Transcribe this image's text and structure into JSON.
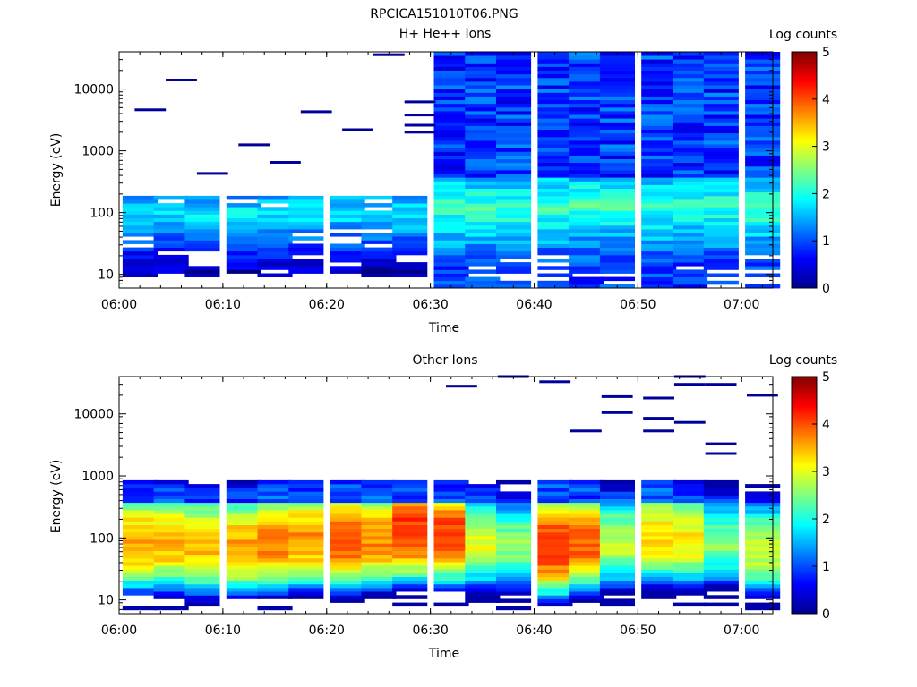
{
  "figure_title": "RPCICA151010T06.PNG",
  "chart_data": [
    {
      "type": "heatmap",
      "title": "H+ He++ Ions",
      "xlabel": "Time",
      "ylabel": "Energy (eV)",
      "xlim": [
        "06:00",
        "07:03"
      ],
      "x_ticks": [
        "06:00",
        "06:10",
        "06:20",
        "06:30",
        "06:40",
        "06:50",
        "07:00"
      ],
      "y_scale": "log",
      "ylim": [
        6,
        40000
      ],
      "y_ticks": [
        "10",
        "100",
        "1000",
        "10000"
      ],
      "colorbar": {
        "label": "Log counts",
        "range": [
          0,
          5
        ],
        "ticks": [
          "0",
          "1",
          "2",
          "3",
          "4",
          "5"
        ],
        "colormap": "jet"
      },
      "time_bins": [
        "06:02",
        "06:05",
        "06:08",
        "06:12",
        "06:15",
        "06:18",
        "06:22",
        "06:25",
        "06:28",
        "06:32",
        "06:35",
        "06:38",
        "06:42",
        "06:45",
        "06:48",
        "06:52",
        "06:55",
        "06:58",
        "07:02"
      ],
      "mode_change_time": "06:31",
      "sparse_high_energy_hits": [
        {
          "t": "06:03",
          "e": 4600
        },
        {
          "t": "06:06",
          "e": 14000
        },
        {
          "t": "06:09",
          "e": 430
        },
        {
          "t": "06:13",
          "e": 1250
        },
        {
          "t": "06:16",
          "e": 650
        },
        {
          "t": "06:19",
          "e": 4300
        },
        {
          "t": "06:23",
          "e": 2200
        },
        {
          "t": "06:26",
          "e": 36000
        },
        {
          "t": "06:29",
          "e": 6200
        },
        {
          "t": "06:29",
          "e": 3800
        },
        {
          "t": "06:29",
          "e": 2600
        },
        {
          "t": "06:29",
          "e": 2000
        }
      ],
      "note": "Low-energy core 10–180 eV before 06:31 (log counts ~0.5–2); after 06:31 full-range coverage with log counts ~0.3–1.5 and peaks ~2.2 near 60–300 eV."
    },
    {
      "type": "heatmap",
      "title": "Other Ions",
      "xlabel": "Time",
      "ylabel": "Energy (eV)",
      "xlim": [
        "06:00",
        "07:03"
      ],
      "x_ticks": [
        "06:00",
        "06:10",
        "06:20",
        "06:30",
        "06:40",
        "06:50",
        "07:00"
      ],
      "y_scale": "log",
      "ylim": [
        6,
        40000
      ],
      "y_ticks": [
        "10",
        "100",
        "1000",
        "10000"
      ],
      "colorbar": {
        "label": "Log counts",
        "range": [
          0,
          5
        ],
        "ticks": [
          "0",
          "1",
          "2",
          "3",
          "4",
          "5"
        ],
        "colormap": "jet"
      },
      "time_bins": [
        "06:02",
        "06:05",
        "06:08",
        "06:12",
        "06:15",
        "06:18",
        "06:22",
        "06:25",
        "06:28",
        "06:32",
        "06:35",
        "06:38",
        "06:42",
        "06:45",
        "06:48",
        "06:52",
        "06:55",
        "06:58",
        "07:02"
      ],
      "peak_log_counts": [
        3.6,
        3.5,
        3.5,
        3.6,
        3.8,
        3.7,
        4.0,
        3.7,
        4.2,
        4.1,
        3.0,
        2.6,
        4.2,
        3.9,
        2.8,
        3.3,
        3.2,
        2.5,
        2.9
      ],
      "peak_energy_eV": [
        80,
        80,
        70,
        70,
        80,
        90,
        90,
        90,
        120,
        110,
        80,
        70,
        70,
        80,
        80,
        100,
        90,
        80,
        60
      ],
      "sparse_high_energy_hits": [
        {
          "t": "06:33",
          "e": 28000
        },
        {
          "t": "06:38",
          "e": 40000
        },
        {
          "t": "06:42",
          "e": 33000
        },
        {
          "t": "06:45",
          "e": 5300
        },
        {
          "t": "06:48",
          "e": 19000
        },
        {
          "t": "06:48",
          "e": 10500
        },
        {
          "t": "06:52",
          "e": 18000
        },
        {
          "t": "06:52",
          "e": 8500
        },
        {
          "t": "06:52",
          "e": 5300
        },
        {
          "t": "06:55",
          "e": 40000
        },
        {
          "t": "06:55",
          "e": 30000
        },
        {
          "t": "06:55",
          "e": 7300
        },
        {
          "t": "06:58",
          "e": 30000
        },
        {
          "t": "06:58",
          "e": 3300
        },
        {
          "t": "06:58",
          "e": 2300
        },
        {
          "t": "07:02",
          "e": 20000
        }
      ]
    }
  ]
}
